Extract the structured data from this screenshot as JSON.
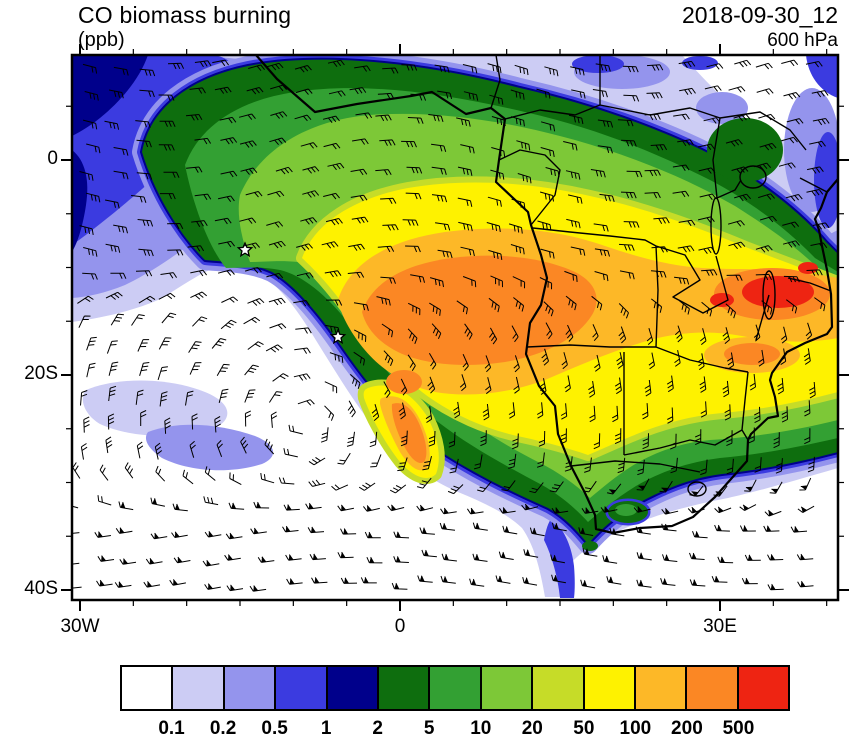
{
  "header": {
    "title": "CO biomass burning",
    "units": "(ppb)",
    "datetime": "2018-09-30_12",
    "level": "600 hPa"
  },
  "map": {
    "lat_labels": [
      "0",
      "20S",
      "40S"
    ],
    "lon_labels": [
      "30W",
      "0",
      "30E"
    ],
    "markers": [
      {
        "type": "star",
        "lon": -14.5,
        "lat": -8.4
      },
      {
        "type": "star",
        "lon": -5.8,
        "lat": -16.5
      }
    ]
  },
  "colorbar": {
    "labels": [
      "0.1",
      "0.2",
      "0.5",
      "1",
      "2",
      "5",
      "10",
      "20",
      "50",
      "100",
      "200",
      "500"
    ],
    "colors": [
      "#ffffff",
      "#ccccf4",
      "#9494ed",
      "#3b3be0",
      "#00008b",
      "#0e6e0e",
      "#33a033",
      "#7dc837",
      "#c6dc28",
      "#fef200",
      "#fdb827",
      "#fb8724",
      "#ee2412"
    ]
  }
}
